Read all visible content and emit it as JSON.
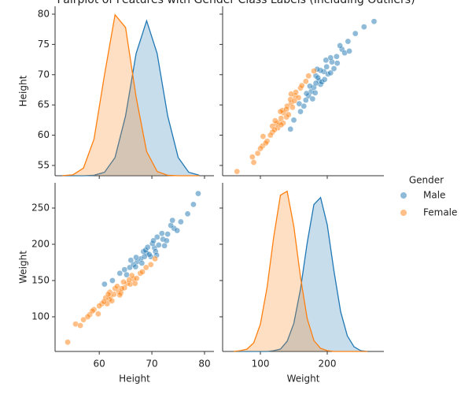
{
  "chart_data": {
    "type": "pairplot",
    "title": "Pairplot of Features with Gender Class Labels (Including Outliers)",
    "legend_title": "Gender",
    "variables": [
      "Height",
      "Weight"
    ],
    "lims": [
      [
        51.6,
        81.8
      ],
      [
        43.5,
        284.7
      ]
    ],
    "vlims": [
      [
        53.3,
        81.3
      ],
      [
        52.2,
        284.8
      ]
    ],
    "xticks": [
      [
        60,
        70,
        80
      ],
      [
        100,
        200
      ]
    ],
    "yticks": [
      [
        55,
        60,
        65,
        70,
        75,
        80
      ],
      [
        100,
        150,
        200,
        250
      ]
    ],
    "kde_grid": {
      "height": [
        53,
        55,
        57,
        59,
        61,
        63,
        65,
        67,
        69,
        71,
        73,
        75,
        77,
        79
      ],
      "weight": [
        60,
        70,
        80,
        90,
        100,
        110,
        120,
        130,
        140,
        150,
        160,
        170,
        180,
        190,
        200,
        210,
        220,
        230,
        240,
        250,
        260
      ]
    },
    "series": [
      {
        "name": "Male",
        "color": "#1f77b4",
        "height": [
          69,
          70.5,
          67.2,
          72.1,
          65.8,
          68.4,
          71.3,
          74.2,
          66.5,
          69.8,
          73.0,
          63.9,
          70.1,
          67.9,
          75.5,
          68.8,
          72.8,
          66.0,
          71.9,
          69.5,
          64.8,
          73.6,
          70.7,
          67.0,
          76.8,
          68.1,
          71.0,
          65.2,
          74.8,
          69.2,
          62.5,
          72.4,
          77.9,
          70.3,
          66.9,
          78.8,
          61.0,
          73.9,
          68.6,
          70.9
        ],
        "weight": [
          188,
          195,
          176,
          207,
          168,
          190,
          199,
          222,
          172,
          183,
          214,
          160,
          201,
          180,
          231,
          192,
          205,
          178,
          215,
          186,
          165,
          226,
          190,
          182,
          242,
          174,
          210,
          158,
          219,
          196,
          150,
          198,
          255,
          205,
          169,
          270,
          145,
          233,
          183,
          185
        ],
        "kde_height": [
          0,
          0,
          0,
          0.0004,
          0.0031,
          0.0162,
          0.0532,
          0.1085,
          0.1376,
          0.1085,
          0.0532,
          0.0162,
          0.0031,
          0.0004
        ],
        "kde_weight": [
          0,
          0,
          0,
          0,
          0,
          0,
          0.0001,
          0.0003,
          0.0013,
          0.0036,
          0.008,
          0.0139,
          0.0188,
          0.0197,
          0.0162,
          0.0103,
          0.0051,
          0.002,
          0.0006,
          0.0001,
          0
        ]
      },
      {
        "name": "Female",
        "color": "#ff7f0e",
        "height": [
          63.7,
          62.1,
          65.3,
          60.5,
          64.8,
          61.9,
          66.5,
          59.0,
          63.0,
          67.8,
          58.2,
          62.8,
          65.9,
          57.0,
          64.1,
          61.2,
          68.9,
          60.0,
          63.4,
          66.2,
          55.5,
          62.4,
          64.6,
          59.8,
          67.1,
          61.5,
          69.8,
          58.7,
          63.9,
          65.7,
          54.0,
          56.4,
          62.0,
          66.8,
          60.9,
          70.6,
          57.8,
          64.3,
          61.7,
          68.2
        ],
        "weight": [
          135,
          128,
          146,
          118,
          140,
          124,
          152,
          110,
          139,
          160,
          103,
          131,
          145,
          96,
          133,
          126,
          168,
          115,
          142,
          157,
          90,
          122,
          148,
          104,
          153,
          118,
          172,
          108,
          130,
          151,
          65,
          88,
          134,
          146,
          121,
          180,
          100,
          139,
          131,
          162
        ],
        "kde_height": [
          0.0001,
          0.0008,
          0.0068,
          0.0325,
          0.0897,
          0.1429,
          0.1316,
          0.07,
          0.0215,
          0.0038,
          0.0004,
          0,
          0,
          0
        ],
        "kde_weight": [
          0,
          0.0001,
          0.0003,
          0.0011,
          0.0035,
          0.0082,
          0.0147,
          0.02,
          0.0205,
          0.016,
          0.0095,
          0.0042,
          0.0014,
          0.0004,
          0.0001,
          0,
          0,
          0,
          0,
          0,
          0
        ]
      }
    ]
  }
}
